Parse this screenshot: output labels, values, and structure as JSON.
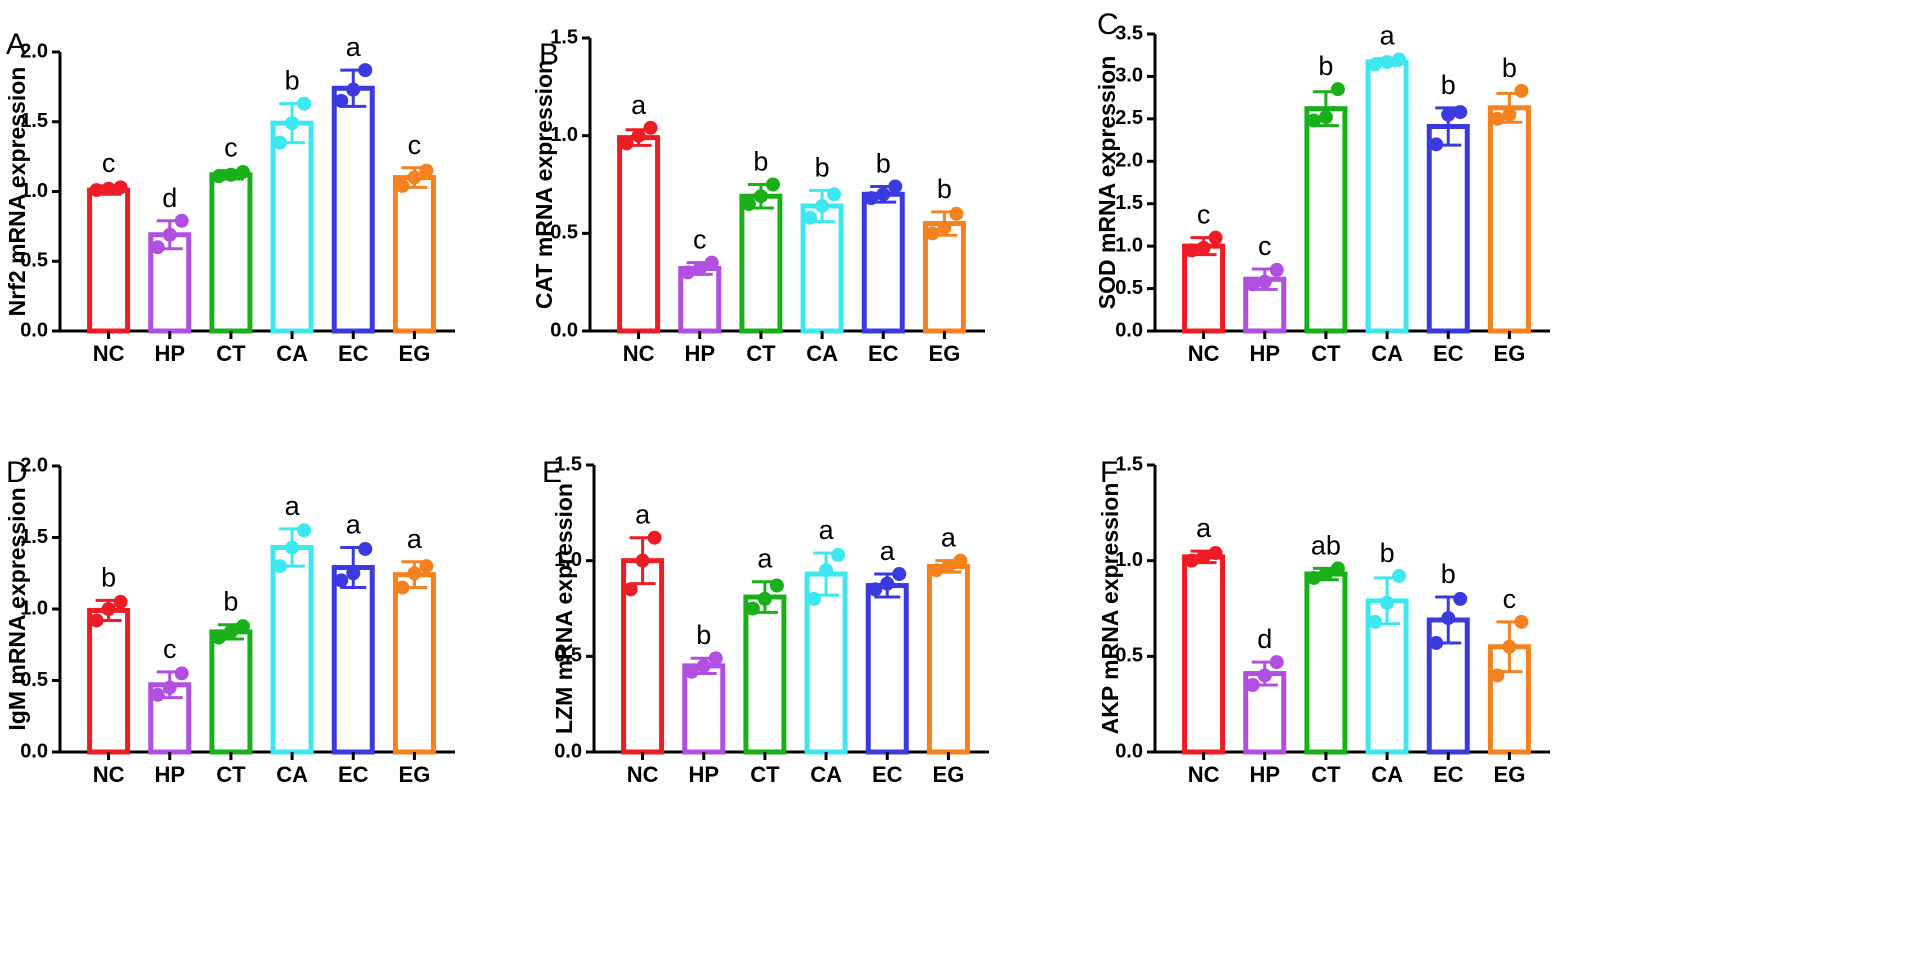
{
  "figure": {
    "colors": {
      "NC": "#ee1c25",
      "HP": "#b04fe0",
      "CT": "#19b019",
      "CA": "#3de8f0",
      "EC": "#3a3ae0",
      "EG": "#f5821f",
      "axis": "#000000"
    }
  },
  "chart_data": [
    {
      "panel": "A",
      "type": "bar",
      "ylabel": "Nrf2 mRNA expression",
      "ylim": [
        0,
        2.0
      ],
      "yticks": [
        "0.0",
        "0.5",
        "1.0",
        "1.5",
        "2.0"
      ],
      "yticks_values": [
        0,
        0.5,
        1.0,
        1.5,
        2.0
      ],
      "categories": [
        "NC",
        "HP",
        "CT",
        "CA",
        "EC",
        "EG"
      ],
      "values": [
        1.01,
        0.69,
        1.12,
        1.49,
        1.74,
        1.1
      ],
      "errors": [
        0.03,
        0.1,
        0.03,
        0.14,
        0.13,
        0.07
      ],
      "points": [
        [
          1.01,
          1.02,
          1.03
        ],
        [
          0.6,
          0.69,
          0.79
        ],
        [
          1.11,
          1.12,
          1.14
        ],
        [
          1.35,
          1.49,
          1.63
        ],
        [
          1.65,
          1.73,
          1.87
        ],
        [
          1.04,
          1.1,
          1.15
        ]
      ],
      "labels": [
        "c",
        "d",
        "c",
        "b",
        "a",
        "c"
      ]
    },
    {
      "panel": "B",
      "type": "bar",
      "ylabel": "CAT mRNA expression",
      "ylim": [
        0,
        1.5
      ],
      "yticks": [
        "0.0",
        "0.5",
        "1.0",
        "1.5"
      ],
      "yticks_values": [
        0,
        0.5,
        1.0,
        1.5
      ],
      "categories": [
        "NC",
        "HP",
        "CT",
        "CA",
        "EC",
        "EG"
      ],
      "values": [
        0.99,
        0.32,
        0.69,
        0.64,
        0.7,
        0.55
      ],
      "errors": [
        0.04,
        0.03,
        0.06,
        0.08,
        0.04,
        0.06
      ],
      "points": [
        [
          0.96,
          1.0,
          1.04
        ],
        [
          0.3,
          0.32,
          0.35
        ],
        [
          0.65,
          0.69,
          0.75
        ],
        [
          0.58,
          0.64,
          0.7
        ],
        [
          0.68,
          0.7,
          0.74
        ],
        [
          0.5,
          0.53,
          0.6
        ]
      ],
      "labels": [
        "a",
        "c",
        "b",
        "b",
        "b",
        "b"
      ]
    },
    {
      "panel": "C",
      "type": "bar",
      "ylabel": "SOD mRNA expression",
      "ylim": [
        0,
        3.5
      ],
      "yticks": [
        "0.0",
        "0.5",
        "1.0",
        "1.5",
        "2.0",
        "2.5",
        "3.0",
        "3.5"
      ],
      "yticks_values": [
        0,
        0.5,
        1.0,
        1.5,
        2.0,
        2.5,
        3.0,
        3.5
      ],
      "categories": [
        "NC",
        "HP",
        "CT",
        "CA",
        "EC",
        "EG"
      ],
      "values": [
        1.0,
        0.61,
        2.62,
        3.17,
        2.41,
        2.63
      ],
      "errors": [
        0.1,
        0.12,
        0.2,
        0.04,
        0.22,
        0.17
      ],
      "points": [
        [
          0.95,
          0.98,
          1.1
        ],
        [
          0.55,
          0.58,
          0.72
        ],
        [
          2.48,
          2.52,
          2.85
        ],
        [
          3.14,
          3.17,
          3.2
        ],
        [
          2.2,
          2.55,
          2.58
        ],
        [
          2.5,
          2.55,
          2.83
        ]
      ],
      "labels": [
        "c",
        "c",
        "b",
        "a",
        "b",
        "b"
      ]
    },
    {
      "panel": "D",
      "type": "bar",
      "ylabel": "IgM mRNA expression",
      "ylim": [
        0,
        2.0
      ],
      "yticks": [
        "0.0",
        "0.5",
        "1.0",
        "1.5",
        "2.0"
      ],
      "yticks_values": [
        0,
        0.5,
        1.0,
        1.5,
        2.0
      ],
      "categories": [
        "NC",
        "HP",
        "CT",
        "CA",
        "EC",
        "EG"
      ],
      "values": [
        0.99,
        0.47,
        0.84,
        1.43,
        1.29,
        1.24
      ],
      "errors": [
        0.07,
        0.09,
        0.05,
        0.13,
        0.14,
        0.09
      ],
      "points": [
        [
          0.92,
          1.0,
          1.05
        ],
        [
          0.4,
          0.45,
          0.55
        ],
        [
          0.8,
          0.84,
          0.88
        ],
        [
          1.3,
          1.43,
          1.55
        ],
        [
          1.2,
          1.25,
          1.42
        ],
        [
          1.15,
          1.25,
          1.3
        ]
      ],
      "labels": [
        "b",
        "c",
        "b",
        "a",
        "a",
        "a"
      ]
    },
    {
      "panel": "E",
      "type": "bar",
      "ylabel": "LZM mRNA expression",
      "ylim": [
        0,
        1.5
      ],
      "yticks": [
        "0.0",
        "0.5",
        "1.0",
        "1.5"
      ],
      "yticks_values": [
        0,
        0.5,
        1.0,
        1.5
      ],
      "categories": [
        "NC",
        "HP",
        "CT",
        "CA",
        "EC",
        "EG"
      ],
      "values": [
        1.0,
        0.45,
        0.81,
        0.93,
        0.87,
        0.97
      ],
      "errors": [
        0.12,
        0.04,
        0.08,
        0.11,
        0.06,
        0.03
      ],
      "points": [
        [
          0.85,
          1.0,
          1.12
        ],
        [
          0.42,
          0.45,
          0.49
        ],
        [
          0.75,
          0.8,
          0.87
        ],
        [
          0.8,
          0.95,
          1.03
        ],
        [
          0.85,
          0.88,
          0.93
        ],
        [
          0.95,
          0.97,
          1.0
        ]
      ],
      "labels": [
        "a",
        "b",
        "a",
        "a",
        "a",
        "a"
      ]
    },
    {
      "panel": "F",
      "type": "bar",
      "ylabel": "AKP mRNA expression",
      "ylim": [
        0,
        1.5
      ],
      "yticks": [
        "0.0",
        "0.5",
        "1.0",
        "1.5"
      ],
      "yticks_values": [
        0,
        0.5,
        1.0,
        1.5
      ],
      "categories": [
        "NC",
        "HP",
        "CT",
        "CA",
        "EC",
        "EG"
      ],
      "values": [
        1.02,
        0.41,
        0.93,
        0.79,
        0.69,
        0.55
      ],
      "errors": [
        0.03,
        0.06,
        0.03,
        0.12,
        0.12,
        0.13
      ],
      "points": [
        [
          1.0,
          1.02,
          1.04
        ],
        [
          0.35,
          0.4,
          0.47
        ],
        [
          0.91,
          0.93,
          0.96
        ],
        [
          0.68,
          0.78,
          0.92
        ],
        [
          0.57,
          0.7,
          0.8
        ],
        [
          0.4,
          0.55,
          0.68
        ]
      ],
      "labels": [
        "a",
        "d",
        "ab",
        "b",
        "b",
        "c"
      ]
    }
  ]
}
